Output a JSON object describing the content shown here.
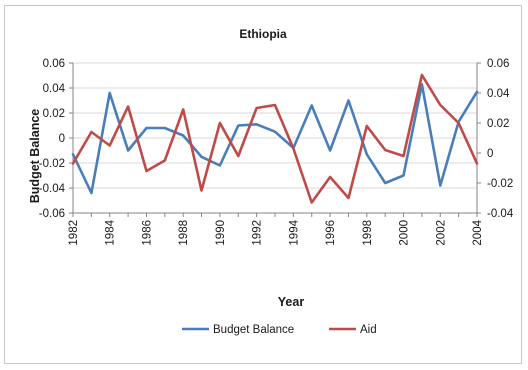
{
  "chart_data": {
    "type": "line",
    "title": "Ethiopia",
    "xlabel": "Year",
    "ylabel": "Budget Balance",
    "y2label": "",
    "x": [
      1982,
      1983,
      1984,
      1985,
      1986,
      1987,
      1988,
      1989,
      1990,
      1991,
      1992,
      1993,
      1994,
      1995,
      1996,
      1997,
      1998,
      1999,
      2000,
      2001,
      2002,
      2003,
      2004
    ],
    "x_tick_labels": [
      "1982",
      "1984",
      "1986",
      "1988",
      "1990",
      "1992",
      "1994",
      "1996",
      "1998",
      "2000",
      "2002",
      "2004"
    ],
    "y_left_ticks": [
      "0.06",
      "0.04",
      "0.02",
      "0",
      "-0.02",
      "-0.04",
      "-0.06"
    ],
    "y_right_ticks": [
      "0.06",
      "0.04",
      "0.02",
      "0",
      "-0.02",
      "-0.04"
    ],
    "ylim_left": [
      -0.06,
      0.06
    ],
    "ylim_right": [
      -0.04,
      0.06
    ],
    "grid": true,
    "legend_position": "bottom",
    "series": [
      {
        "name": "Budget Balance",
        "axis": "left",
        "color": "#4a7ebb",
        "values": [
          -0.013,
          -0.044,
          0.036,
          -0.01,
          0.008,
          0.008,
          0.002,
          -0.015,
          -0.022,
          0.01,
          0.011,
          0.005,
          -0.008,
          0.026,
          -0.01,
          0.03,
          -0.013,
          -0.036,
          -0.03,
          0.043,
          -0.038,
          0.013,
          0.037
        ]
      },
      {
        "name": "Aid",
        "axis": "right",
        "color": "#be4b48",
        "values": [
          -0.007,
          0.014,
          0.005,
          0.031,
          -0.012,
          -0.005,
          0.029,
          -0.025,
          0.02,
          -0.002,
          0.03,
          0.032,
          0.003,
          -0.033,
          -0.016,
          -0.03,
          0.018,
          0.002,
          -0.002,
          0.052,
          0.032,
          0.02,
          -0.007
        ]
      }
    ]
  }
}
